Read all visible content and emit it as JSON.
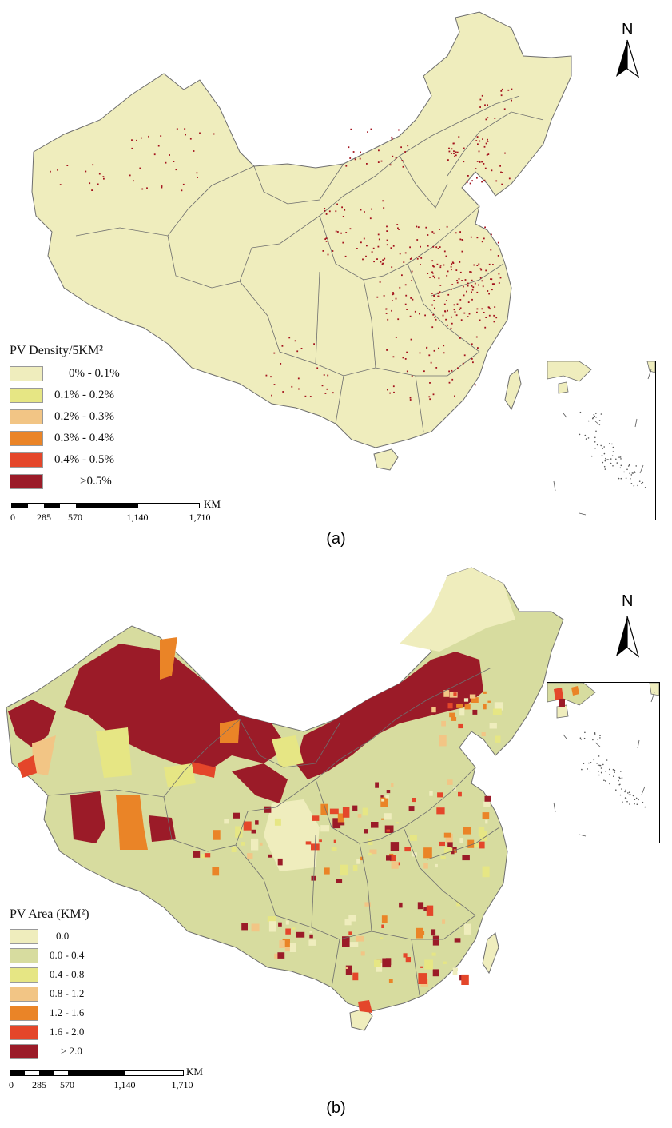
{
  "panels": [
    {
      "label": "(a)",
      "legend_title": "PV Density/5KM²",
      "legend": [
        {
          "label": "0% - 0.1%",
          "color": "#efedbd"
        },
        {
          "label": "0.1% - 0.2%",
          "color": "#e6e684"
        },
        {
          "label": "0.2% - 0.3%",
          "color": "#f2c585"
        },
        {
          "label": "0.3% - 0.4%",
          "color": "#ea8427"
        },
        {
          "label": "0.4% - 0.5%",
          "color": "#e4462a"
        },
        {
          "label": ">0.5%",
          "color": "#9b1b28"
        }
      ]
    },
    {
      "label": "(b)",
      "legend_title": "PV Area (KM²)",
      "legend": [
        {
          "label": "0.0",
          "color": "#efedbd"
        },
        {
          "label": "0.0 - 0.4",
          "color": "#d7dc9f"
        },
        {
          "label": "0.4 - 0.8",
          "color": "#e6e684"
        },
        {
          "label": "0.8 - 1.2",
          "color": "#f2c585"
        },
        {
          "label": "1.2 - 1.6",
          "color": "#ea8427"
        },
        {
          "label": "1.6 - 2.0",
          "color": "#e4462a"
        },
        {
          "label": "> 2.0",
          "color": "#9b1b28"
        }
      ]
    }
  ],
  "scale": {
    "unit": "KM",
    "ticks": [
      "0",
      "285",
      "570",
      "1,140",
      "1,710"
    ]
  },
  "north_label": "N",
  "colors": {
    "land": "#efedbd",
    "border": "#6e6e6e",
    "pv": "#a3121c"
  }
}
